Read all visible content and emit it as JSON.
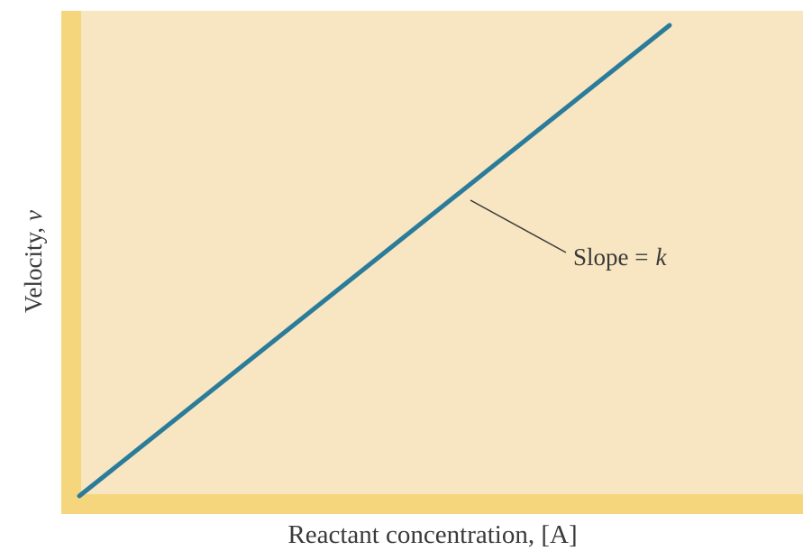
{
  "y_label": {
    "text": "Velocity,",
    "symbol": "v"
  },
  "x_label": "Reactant concentration, [A]",
  "annotation": {
    "text": "Slope =",
    "symbol": "k"
  }
}
